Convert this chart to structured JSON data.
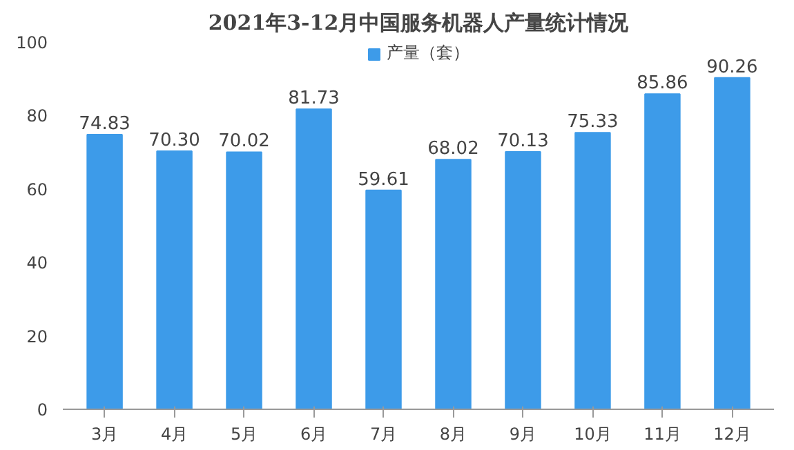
{
  "chart_data": {
    "type": "bar",
    "title": "2021年3-12月中国服务机器人产量统计情况",
    "categories": [
      "3月",
      "4月",
      "5月",
      "6月",
      "7月",
      "8月",
      "9月",
      "10月",
      "11月",
      "12月"
    ],
    "series": [
      {
        "name": "产量（套）",
        "color": "#3d9be9",
        "values": [
          74.83,
          70.3,
          70.02,
          81.73,
          59.61,
          68.02,
          70.13,
          75.33,
          85.86,
          90.26
        ]
      }
    ],
    "value_labels": [
      "74.83",
      "70.30",
      "70.02",
      "81.73",
      "59.61",
      "68.02",
      "70.13",
      "75.33",
      "85.86",
      "90.26"
    ],
    "ylim": [
      0,
      100
    ],
    "yticks": [
      0,
      20,
      40,
      60,
      80,
      100
    ],
    "grid": false,
    "legend": "top"
  }
}
